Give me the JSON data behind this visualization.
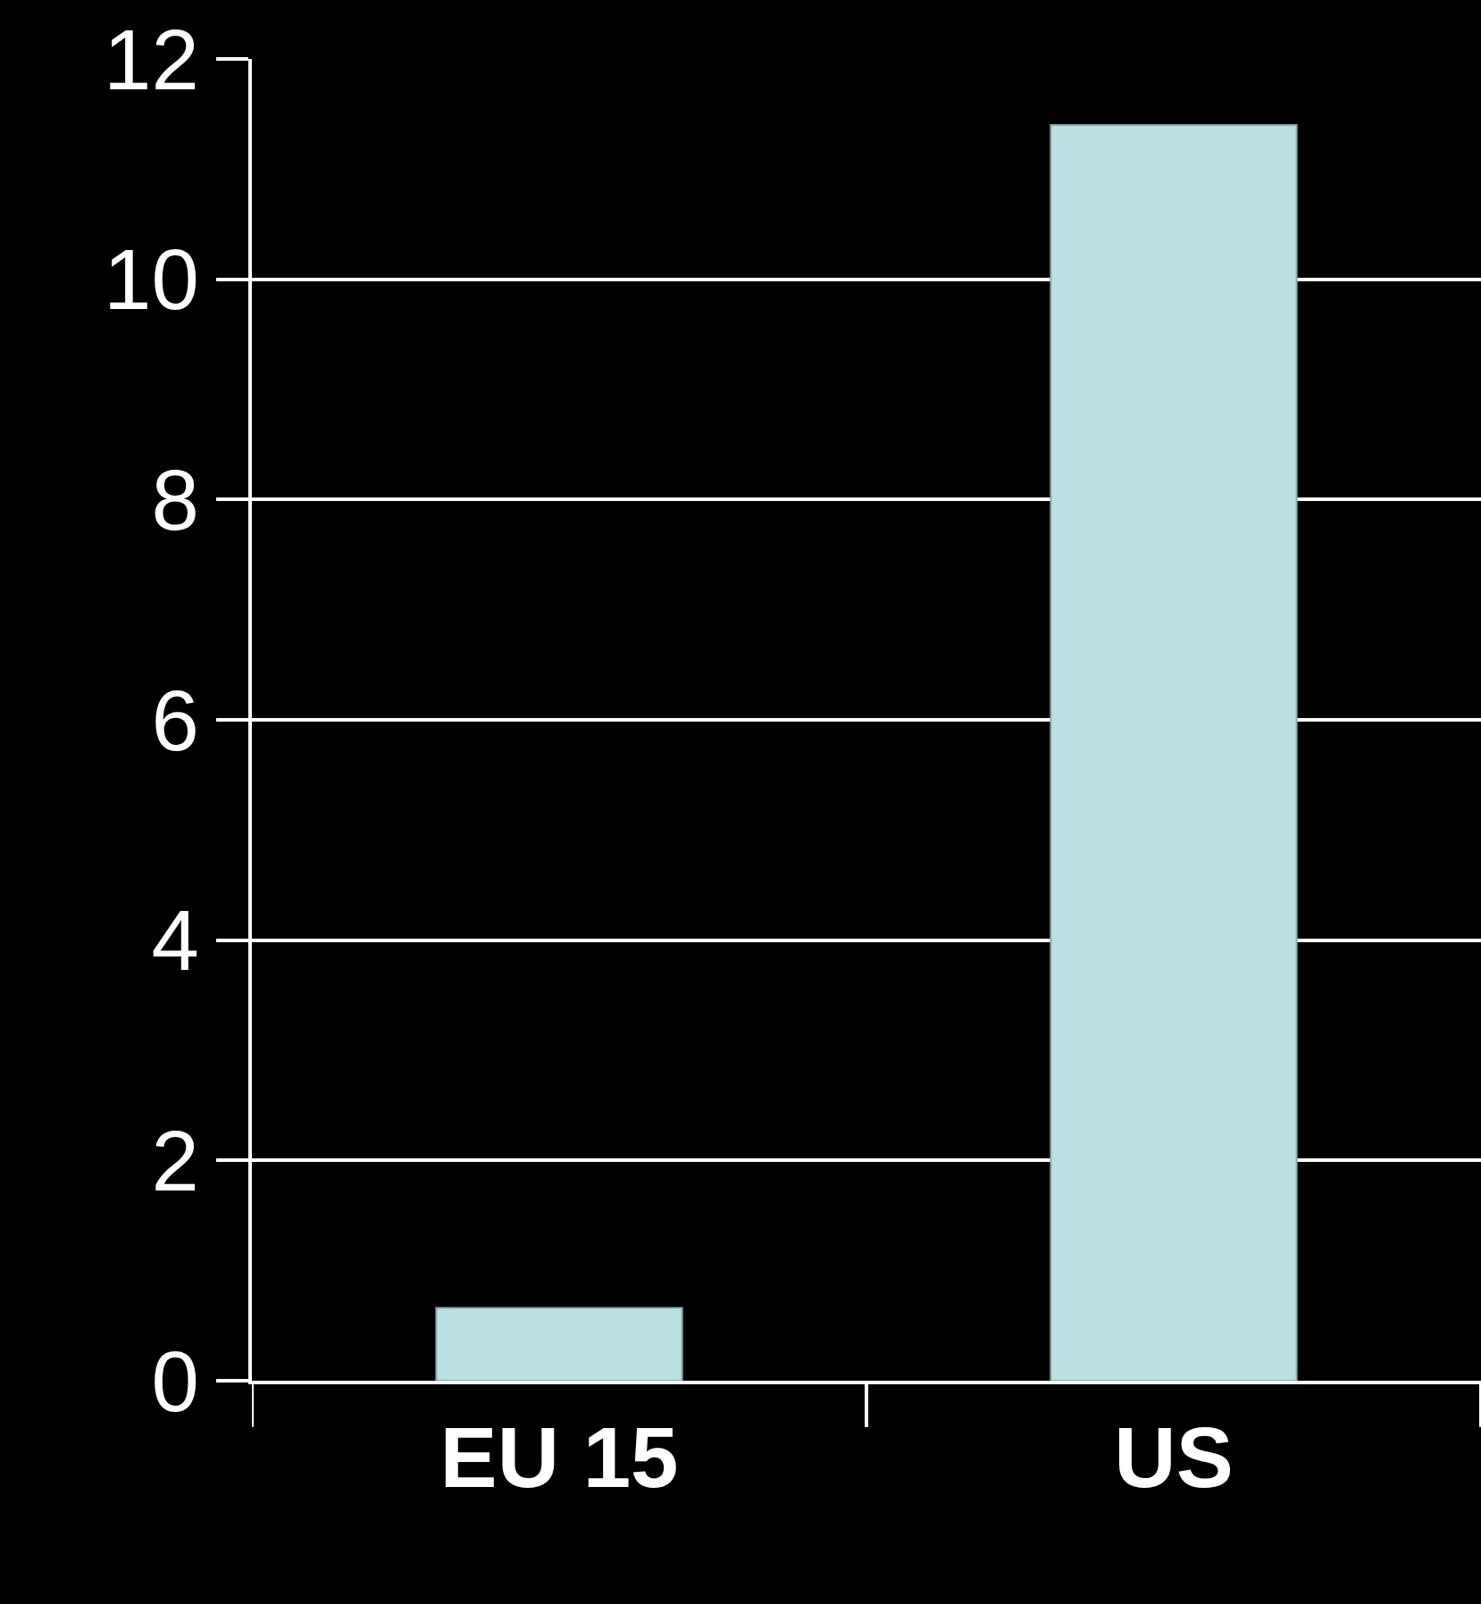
{
  "chart_data": {
    "type": "bar",
    "categories": [
      "EU 15",
      "US"
    ],
    "series": [
      {
        "color": "#b9e0e3",
        "values": [
          0.66,
          11.4
        ]
      }
    ],
    "ylim": [
      0,
      12
    ],
    "yticks": [
      0,
      2,
      4,
      6,
      8,
      10,
      12
    ],
    "grid": "y",
    "legend": false
  }
}
